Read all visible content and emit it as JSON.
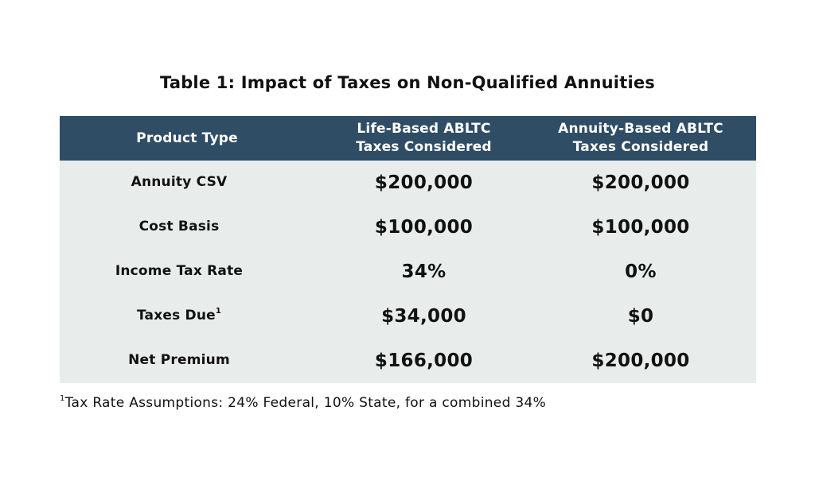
{
  "title": "Table 1: Impact of Taxes on Non-Qualified Annuities",
  "table": {
    "headers": [
      {
        "line1": "Product Type",
        "line2": ""
      },
      {
        "line1": "Life-Based ABLTC",
        "line2": "Taxes Considered"
      },
      {
        "line1": "Annuity-Based ABLTC",
        "line2": "Taxes Considered"
      }
    ],
    "rows": [
      {
        "label": "Annuity CSV",
        "sup": "",
        "life": "$200,000",
        "annuity": "$200,000"
      },
      {
        "label": "Cost Basis",
        "sup": "",
        "life": "$100,000",
        "annuity": "$100,000"
      },
      {
        "label": "Income Tax Rate",
        "sup": "",
        "life": "34%",
        "annuity": "0%"
      },
      {
        "label": "Taxes Due",
        "sup": "1",
        "life": "$34,000",
        "annuity": "$0"
      },
      {
        "label": "Net Premium",
        "sup": "",
        "life": "$166,000",
        "annuity": "$200,000"
      }
    ]
  },
  "footnote": {
    "marker": "1",
    "text": "Tax Rate Assumptions: 24% Federal, 10% State, for a combined 34%"
  },
  "colors": {
    "header_bg": "#2f4d64",
    "body_bg": "#e8edec",
    "header_text": "#ffffff"
  }
}
